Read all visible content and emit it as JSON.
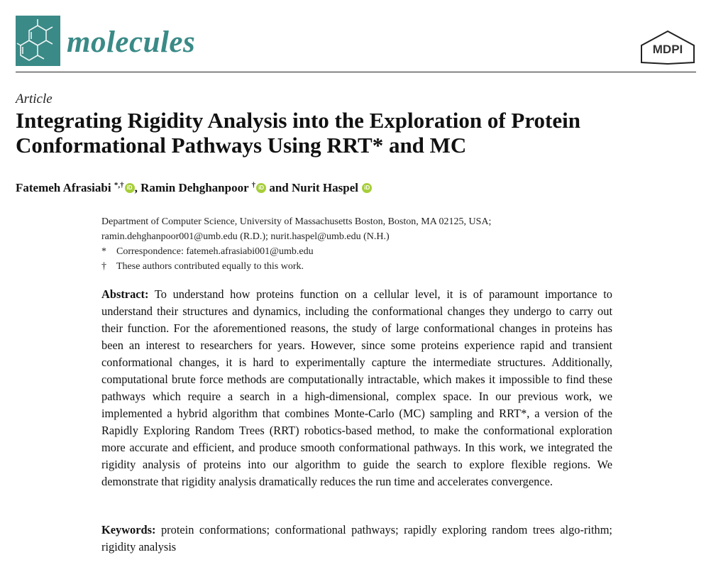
{
  "header": {
    "journal_name": "molecules",
    "publisher_logo_text": "MDPI",
    "brand_color": "#3a8a87",
    "orcid_color": "#a6ce39"
  },
  "article": {
    "type": "Article",
    "title": "Integrating Rigidity Analysis into the Exploration of Protein Conformational Pathways Using RRT* and MC"
  },
  "authors": [
    {
      "name": "Fatemeh Afrasiabi",
      "marks": "*,†",
      "orcid_icon": "orcid-icon"
    },
    {
      "name": "Ramin Dehghanpoor",
      "marks": "†",
      "orcid_icon": "orcid-icon"
    },
    {
      "name": "Nurit Haspel",
      "marks": "",
      "orcid_icon": "orcid-icon"
    }
  ],
  "author_separators": {
    "comma": ",",
    "and": "and"
  },
  "affiliation": {
    "line1": "Department of Computer Science, University of Massachusetts Boston, Boston, MA 02125, USA;",
    "line2": "ramin.dehghanpoor001@umb.edu (R.D.); nurit.haspel@umb.edu (N.H.)",
    "correspondence_symbol": "*",
    "correspondence": "Correspondence: fatemeh.afrasiabi001@umb.edu",
    "equal_symbol": "†",
    "equal_contribution": "These authors contributed equally to this work."
  },
  "abstract": {
    "label": "Abstract:",
    "text": "To understand how proteins function on a cellular level, it is of paramount importance to understand their structures and dynamics, including the conformational changes they undergo to carry out their function. For the aforementioned reasons, the study of large conformational changes in proteins has been an interest to researchers for years. However, since some proteins experience rapid and transient conformational changes, it is hard to experimentally capture the intermediate structures. Additionally, computational brute force methods are computationally intractable, which makes it impossible to find these pathways which require a search in a high-dimensional, complex space. In our previous work, we implemented a hybrid algorithm that combines Monte-Carlo (MC) sampling and RRT*, a version of the Rapidly Exploring Random Trees (RRT) robotics-based method, to make the conformational exploration more accurate and efficient, and produce smooth conformational pathways. In this work, we integrated the rigidity analysis of proteins into our algorithm to guide the search to explore flexible regions. We demonstrate that rigidity analysis dramatically reduces the run time and accelerates convergence."
  },
  "keywords": {
    "label": "Keywords:",
    "text": "protein conformations; conformational pathways; rapidly exploring random trees algo-rithm; rigidity analysis"
  }
}
